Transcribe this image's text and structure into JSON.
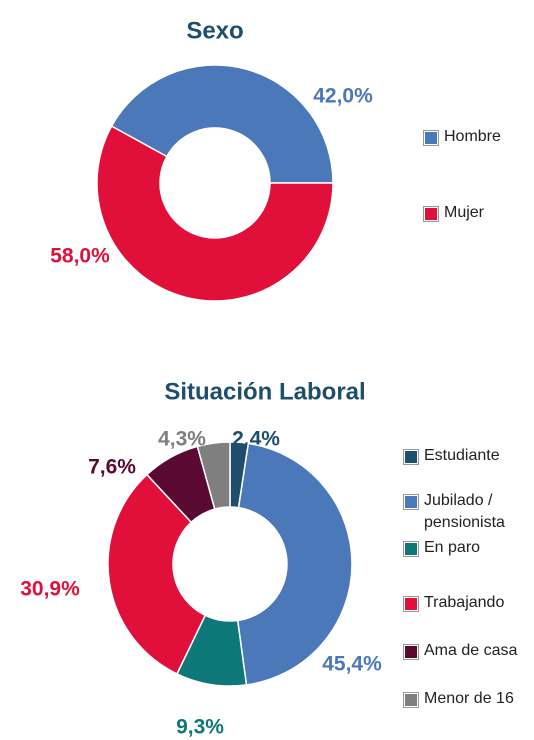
{
  "chart_data": [
    {
      "type": "pie",
      "donut": true,
      "title": "Sexo",
      "categories": [
        "Hombre",
        "Mujer"
      ],
      "values": [
        42.0,
        58.0
      ],
      "value_labels": [
        "42,0%",
        "58,0%"
      ],
      "colors": [
        "#4a78b8",
        "#e0103a"
      ],
      "legend": "right"
    },
    {
      "type": "pie",
      "donut": true,
      "title": "Situación Laboral",
      "categories": [
        "Estudiante",
        "Jubilado / pensionista",
        "En paro",
        "Trabajando",
        "Ama de casa",
        "Menor de 16"
      ],
      "values": [
        2.4,
        45.4,
        9.3,
        30.9,
        7.6,
        4.3
      ],
      "value_labels": [
        "2,4%",
        "45,4%",
        "9,3%",
        "30,9%",
        "7,6%",
        "4,3%"
      ],
      "colors": [
        "#1d4e6b",
        "#4a78b8",
        "#0e7878",
        "#e0103a",
        "#5a0a30",
        "#7f7f7f"
      ],
      "legend": "right"
    }
  ]
}
